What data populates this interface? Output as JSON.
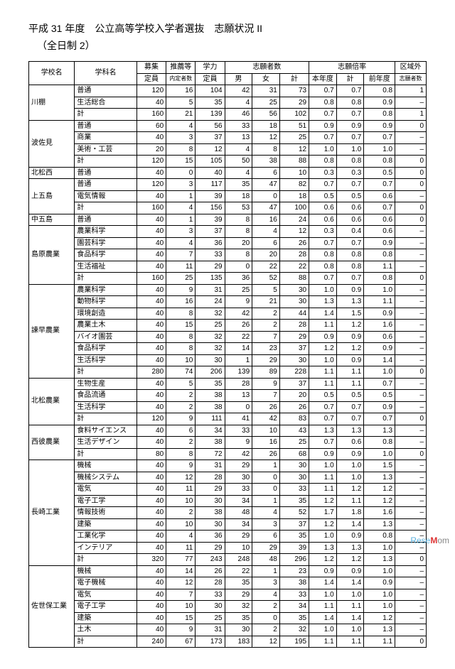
{
  "title": "平成 31 年度　公立高等学校入学者選抜　志願状況 II",
  "subtitle": "（全日制 2）",
  "header": {
    "school": "学校名",
    "dept": "学科名",
    "boshu": "募集",
    "suisen": "推薦等",
    "gakuryoku": "学力",
    "shigan": "志願者数",
    "bairitsu": "志願倍率",
    "kuikig": "区域外",
    "teiin": "定員",
    "naitei": "内定者数",
    "teiin2": "定員",
    "m": "男",
    "f": "女",
    "kei": "計",
    "honnen": "本年度",
    "zennen": "前年度",
    "shigan2": "志願者数"
  },
  "rows": [
    {
      "school": "川棚",
      "dept": "普通",
      "v": [
        "120",
        "16",
        "104",
        "42",
        "31",
        "73",
        "0.7",
        "0.7",
        "0.8",
        "1"
      ]
    },
    {
      "school": "",
      "dept": "生活総合",
      "v": [
        "40",
        "5",
        "35",
        "4",
        "25",
        "29",
        "0.8",
        "0.8",
        "0.9",
        "–"
      ]
    },
    {
      "school": "",
      "dept": "計",
      "v": [
        "160",
        "21",
        "139",
        "46",
        "56",
        "102",
        "0.7",
        "0.7",
        "0.8",
        "1"
      ]
    },
    {
      "school": "波佐見",
      "dept": "普通",
      "v": [
        "60",
        "4",
        "56",
        "33",
        "18",
        "51",
        "0.9",
        "0.9",
        "0.9",
        "0"
      ]
    },
    {
      "school": "",
      "dept": "商業",
      "v": [
        "40",
        "3",
        "37",
        "13",
        "12",
        "25",
        "0.7",
        "0.7",
        "0.7",
        "–"
      ]
    },
    {
      "school": "",
      "dept": "美術・工芸",
      "v": [
        "20",
        "8",
        "12",
        "4",
        "8",
        "12",
        "1.0",
        "1.0",
        "1.0",
        "–"
      ]
    },
    {
      "school": "",
      "dept": "計",
      "v": [
        "120",
        "15",
        "105",
        "50",
        "38",
        "88",
        "0.8",
        "0.8",
        "0.8",
        "0"
      ]
    },
    {
      "school": "北松西",
      "dept": "普通",
      "v": [
        "40",
        "0",
        "40",
        "4",
        "6",
        "10",
        "0.3",
        "0.3",
        "0.5",
        "0"
      ]
    },
    {
      "school": "上五島",
      "dept": "普通",
      "v": [
        "120",
        "3",
        "117",
        "35",
        "47",
        "82",
        "0.7",
        "0.7",
        "0.7",
        "0"
      ]
    },
    {
      "school": "",
      "dept": "電気情報",
      "v": [
        "40",
        "1",
        "39",
        "18",
        "0",
        "18",
        "0.5",
        "0.5",
        "0.6",
        "–"
      ]
    },
    {
      "school": "",
      "dept": "計",
      "v": [
        "160",
        "4",
        "156",
        "53",
        "47",
        "100",
        "0.6",
        "0.6",
        "0.7",
        "0"
      ]
    },
    {
      "school": "中五島",
      "dept": "普通",
      "v": [
        "40",
        "1",
        "39",
        "8",
        "16",
        "24",
        "0.6",
        "0.6",
        "0.6",
        "0"
      ]
    },
    {
      "school": "島原農業",
      "dept": "農業科学",
      "v": [
        "40",
        "3",
        "37",
        "8",
        "4",
        "12",
        "0.3",
        "0.4",
        "0.6",
        "–"
      ]
    },
    {
      "school": "",
      "dept": "園芸科学",
      "v": [
        "40",
        "4",
        "36",
        "20",
        "6",
        "26",
        "0.7",
        "0.7",
        "0.9",
        "–"
      ]
    },
    {
      "school": "",
      "dept": "食品科学",
      "v": [
        "40",
        "7",
        "33",
        "8",
        "20",
        "28",
        "0.8",
        "0.8",
        "0.8",
        "–"
      ]
    },
    {
      "school": "",
      "dept": "生活福祉",
      "v": [
        "40",
        "11",
        "29",
        "0",
        "22",
        "22",
        "0.8",
        "0.8",
        "1.1",
        "–"
      ]
    },
    {
      "school": "",
      "dept": "計",
      "v": [
        "160",
        "25",
        "135",
        "36",
        "52",
        "88",
        "0.7",
        "0.7",
        "0.8",
        "0"
      ]
    },
    {
      "school": "諫早農業",
      "dept": "農業科学",
      "v": [
        "40",
        "9",
        "31",
        "25",
        "5",
        "30",
        "1.0",
        "0.9",
        "1.0",
        "–"
      ]
    },
    {
      "school": "",
      "dept": "動物科学",
      "v": [
        "40",
        "16",
        "24",
        "9",
        "21",
        "30",
        "1.3",
        "1.3",
        "1.1",
        "–"
      ]
    },
    {
      "school": "",
      "dept": "環境創造",
      "v": [
        "40",
        "8",
        "32",
        "42",
        "2",
        "44",
        "1.4",
        "1.5",
        "0.9",
        "–"
      ]
    },
    {
      "school": "",
      "dept": "農業土木",
      "v": [
        "40",
        "15",
        "25",
        "26",
        "2",
        "28",
        "1.1",
        "1.2",
        "1.6",
        "–"
      ]
    },
    {
      "school": "",
      "dept": "バイオ園芸",
      "v": [
        "40",
        "8",
        "32",
        "22",
        "7",
        "29",
        "0.9",
        "0.9",
        "0.6",
        "–"
      ]
    },
    {
      "school": "",
      "dept": "食品科学",
      "v": [
        "40",
        "8",
        "32",
        "14",
        "23",
        "37",
        "1.2",
        "1.2",
        "0.9",
        "–"
      ]
    },
    {
      "school": "",
      "dept": "生活科学",
      "v": [
        "40",
        "10",
        "30",
        "1",
        "29",
        "30",
        "1.0",
        "0.9",
        "1.4",
        "–"
      ]
    },
    {
      "school": "",
      "dept": "計",
      "v": [
        "280",
        "74",
        "206",
        "139",
        "89",
        "228",
        "1.1",
        "1.1",
        "1.0",
        "0"
      ]
    },
    {
      "school": "北松農業",
      "dept": "生物生産",
      "v": [
        "40",
        "5",
        "35",
        "28",
        "9",
        "37",
        "1.1",
        "1.1",
        "0.7",
        "–"
      ]
    },
    {
      "school": "",
      "dept": "食品流通",
      "v": [
        "40",
        "2",
        "38",
        "13",
        "7",
        "20",
        "0.5",
        "0.5",
        "0.5",
        "–"
      ]
    },
    {
      "school": "",
      "dept": "生活科学",
      "v": [
        "40",
        "2",
        "38",
        "0",
        "26",
        "26",
        "0.7",
        "0.7",
        "0.9",
        "–"
      ]
    },
    {
      "school": "",
      "dept": "計",
      "v": [
        "120",
        "9",
        "111",
        "41",
        "42",
        "83",
        "0.7",
        "0.7",
        "0.7",
        "0"
      ]
    },
    {
      "school": "西彼農業",
      "dept": "食料サイエンス",
      "v": [
        "40",
        "6",
        "34",
        "33",
        "10",
        "43",
        "1.3",
        "1.3",
        "1.3",
        "–"
      ]
    },
    {
      "school": "",
      "dept": "生活デザイン",
      "v": [
        "40",
        "2",
        "38",
        "9",
        "16",
        "25",
        "0.7",
        "0.6",
        "0.8",
        "–"
      ]
    },
    {
      "school": "",
      "dept": "計",
      "v": [
        "80",
        "8",
        "72",
        "42",
        "26",
        "68",
        "0.9",
        "0.9",
        "1.0",
        "0"
      ]
    },
    {
      "school": "長崎工業",
      "dept": "機械",
      "v": [
        "40",
        "9",
        "31",
        "29",
        "1",
        "30",
        "1.0",
        "1.0",
        "1.5",
        "–"
      ]
    },
    {
      "school": "",
      "dept": "機械システム",
      "v": [
        "40",
        "12",
        "28",
        "30",
        "0",
        "30",
        "1.1",
        "1.0",
        "1.3",
        "–"
      ]
    },
    {
      "school": "",
      "dept": "電気",
      "v": [
        "40",
        "11",
        "29",
        "33",
        "0",
        "33",
        "1.1",
        "1.2",
        "1.2",
        "–"
      ]
    },
    {
      "school": "",
      "dept": "電子工学",
      "v": [
        "40",
        "10",
        "30",
        "34",
        "1",
        "35",
        "1.2",
        "1.1",
        "1.2",
        "–"
      ]
    },
    {
      "school": "",
      "dept": "情報技術",
      "v": [
        "40",
        "2",
        "38",
        "48",
        "4",
        "52",
        "1.7",
        "1.8",
        "1.6",
        "–"
      ]
    },
    {
      "school": "",
      "dept": "建築",
      "v": [
        "40",
        "10",
        "30",
        "34",
        "3",
        "37",
        "1.2",
        "1.4",
        "1.3",
        "–"
      ]
    },
    {
      "school": "",
      "dept": "工業化学",
      "v": [
        "40",
        "4",
        "36",
        "29",
        "6",
        "35",
        "1.0",
        "0.9",
        "0.8",
        "–"
      ]
    },
    {
      "school": "",
      "dept": "インテリア",
      "v": [
        "40",
        "11",
        "29",
        "10",
        "29",
        "39",
        "1.3",
        "1.3",
        "1.0",
        "–"
      ]
    },
    {
      "school": "",
      "dept": "計",
      "v": [
        "320",
        "77",
        "243",
        "248",
        "48",
        "296",
        "1.2",
        "1.2",
        "1.3",
        "0"
      ]
    },
    {
      "school": "佐世保工業",
      "dept": "機械",
      "v": [
        "40",
        "14",
        "26",
        "22",
        "1",
        "23",
        "0.9",
        "0.9",
        "1.0",
        "–"
      ]
    },
    {
      "school": "",
      "dept": "電子機械",
      "v": [
        "40",
        "12",
        "28",
        "35",
        "3",
        "38",
        "1.4",
        "1.4",
        "0.9",
        "–"
      ]
    },
    {
      "school": "",
      "dept": "電気",
      "v": [
        "40",
        "7",
        "33",
        "29",
        "4",
        "33",
        "1.0",
        "1.0",
        "1.0",
        "–"
      ]
    },
    {
      "school": "",
      "dept": "電子工学",
      "v": [
        "40",
        "10",
        "30",
        "32",
        "2",
        "34",
        "1.1",
        "1.1",
        "1.0",
        "–"
      ]
    },
    {
      "school": "",
      "dept": "建築",
      "v": [
        "40",
        "15",
        "25",
        "35",
        "0",
        "35",
        "1.4",
        "1.4",
        "1.2",
        "–"
      ]
    },
    {
      "school": "",
      "dept": "土木",
      "v": [
        "40",
        "9",
        "31",
        "30",
        "2",
        "32",
        "1.0",
        "1.0",
        "1.3",
        "–"
      ]
    },
    {
      "school": "",
      "dept": "計",
      "v": [
        "240",
        "67",
        "173",
        "183",
        "12",
        "195",
        "1.1",
        "1.1",
        "1.1",
        "0"
      ]
    }
  ],
  "watermark": "ReseMom"
}
